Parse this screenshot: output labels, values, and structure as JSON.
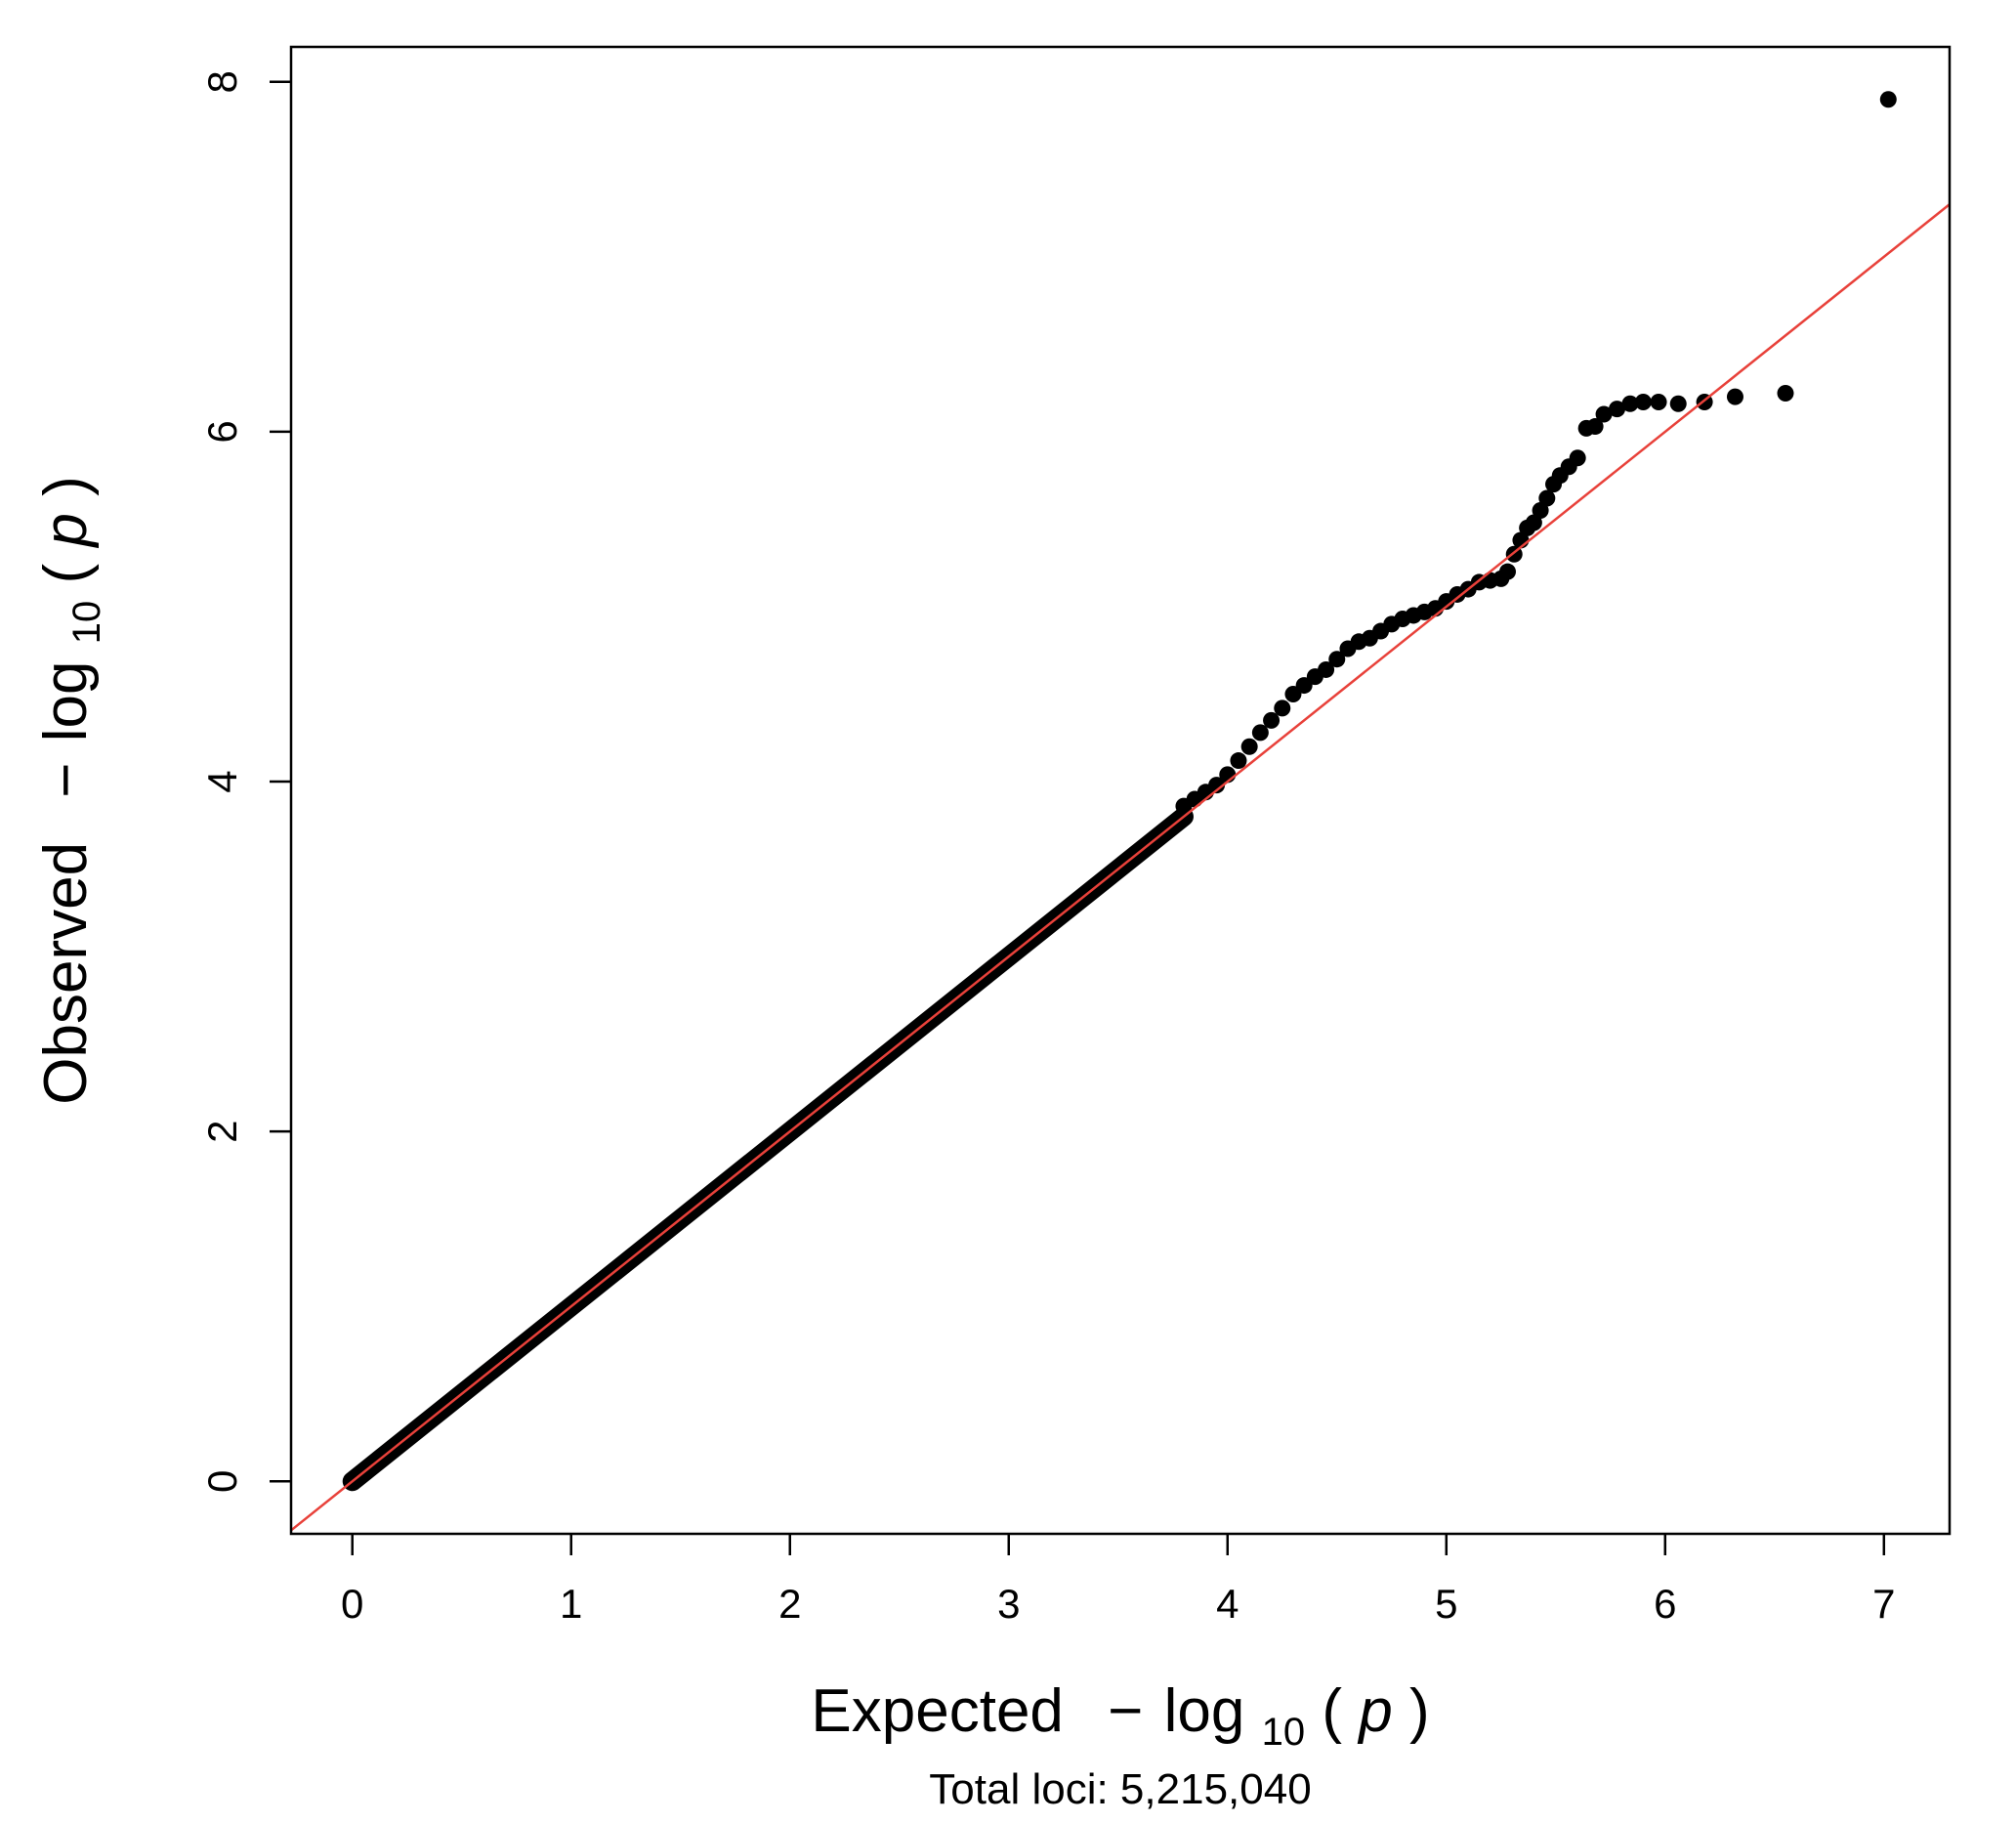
{
  "chart_data": {
    "type": "scatter",
    "title": "",
    "xlabel": {
      "prefix": "Expected",
      "minus": "−",
      "func": "log",
      "sub": "10",
      "open": "(",
      "var": "p",
      "close": ")"
    },
    "ylabel": {
      "prefix": "Observed",
      "minus": "−",
      "func": "log",
      "sub": "10",
      "open": "(",
      "var": "p",
      "close": ")"
    },
    "caption": "Total loci: 5,215,040",
    "xlim": [
      -0.28,
      7.3
    ],
    "ylim": [
      -0.3,
      8.2
    ],
    "x_ticks": [
      "0",
      "1",
      "2",
      "3",
      "4",
      "5",
      "6",
      "7"
    ],
    "y_ticks": [
      "0",
      "2",
      "4",
      "6",
      "8"
    ],
    "grid": false,
    "legend": "none",
    "colors": {
      "points": "#000000",
      "reference_line": "#e8413a",
      "frame": "#000000"
    },
    "reference_line": {
      "slope": 1,
      "intercept": 0
    },
    "dense_bulk": {
      "from": 0,
      "to": 3.8,
      "description": "points follow the diagonal"
    },
    "points": [
      [
        3.8,
        3.86
      ],
      [
        3.85,
        3.9
      ],
      [
        3.9,
        3.94
      ],
      [
        3.95,
        3.98
      ],
      [
        4.0,
        4.04
      ],
      [
        4.05,
        4.12
      ],
      [
        4.1,
        4.2
      ],
      [
        4.15,
        4.28
      ],
      [
        4.2,
        4.35
      ],
      [
        4.25,
        4.42
      ],
      [
        4.3,
        4.5
      ],
      [
        4.35,
        4.55
      ],
      [
        4.4,
        4.6
      ],
      [
        4.45,
        4.64
      ],
      [
        4.5,
        4.7
      ],
      [
        4.55,
        4.76
      ],
      [
        4.6,
        4.8
      ],
      [
        4.65,
        4.82
      ],
      [
        4.7,
        4.86
      ],
      [
        4.75,
        4.9
      ],
      [
        4.8,
        4.93
      ],
      [
        4.85,
        4.95
      ],
      [
        4.9,
        4.97
      ],
      [
        4.95,
        4.99
      ],
      [
        5.0,
        5.03
      ],
      [
        5.05,
        5.07
      ],
      [
        5.1,
        5.1
      ],
      [
        5.15,
        5.14
      ],
      [
        5.2,
        5.15
      ],
      [
        5.25,
        5.16
      ],
      [
        5.28,
        5.2
      ],
      [
        5.31,
        5.3
      ],
      [
        5.34,
        5.38
      ],
      [
        5.37,
        5.45
      ],
      [
        5.4,
        5.48
      ],
      [
        5.43,
        5.55
      ],
      [
        5.46,
        5.62
      ],
      [
        5.49,
        5.7
      ],
      [
        5.52,
        5.75
      ],
      [
        5.56,
        5.8
      ],
      [
        5.6,
        5.85
      ],
      [
        5.64,
        6.02
      ],
      [
        5.68,
        6.03
      ],
      [
        5.72,
        6.1
      ],
      [
        5.78,
        6.13
      ],
      [
        5.84,
        6.16
      ],
      [
        5.9,
        6.17
      ],
      [
        5.97,
        6.17
      ],
      [
        6.06,
        6.16
      ],
      [
        6.18,
        6.17
      ],
      [
        6.32,
        6.2
      ],
      [
        6.55,
        6.22
      ],
      [
        7.02,
        7.9
      ]
    ]
  }
}
